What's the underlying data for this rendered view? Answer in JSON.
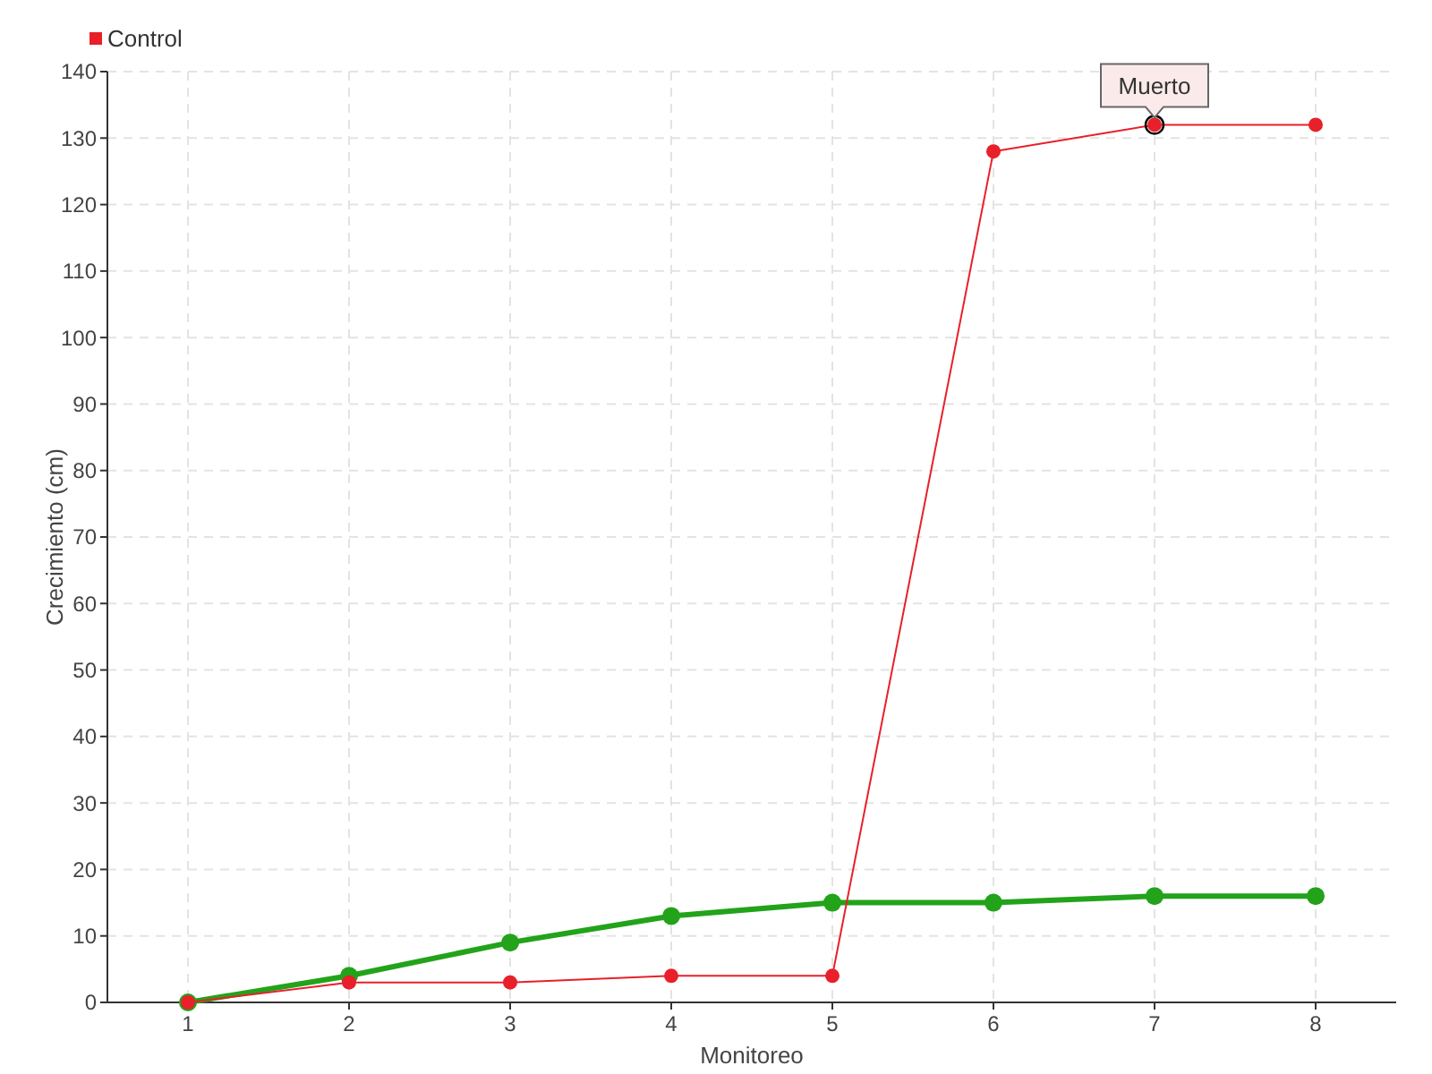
{
  "chart_data": {
    "type": "line",
    "xlabel": "Monitoreo",
    "ylabel": "Crecimiento (cm)",
    "x": [
      1,
      2,
      3,
      4,
      5,
      6,
      7,
      8
    ],
    "series": [
      {
        "color": "#22a31a",
        "values": [
          0,
          4,
          9,
          13,
          15,
          15,
          16,
          16
        ]
      },
      {
        "name": "Control",
        "color": "#e8202a",
        "values": [
          0,
          3,
          3,
          4,
          4,
          128,
          132,
          132
        ]
      }
    ],
    "xlim": [
      0.5,
      8.5
    ],
    "xticks": [
      1,
      2,
      3,
      4,
      5,
      6,
      7,
      8
    ],
    "ylim": [
      0,
      140
    ],
    "yticks": [
      0,
      10,
      20,
      30,
      40,
      50,
      60,
      70,
      80,
      90,
      100,
      110,
      120,
      130,
      140
    ],
    "grid": true,
    "legend": "top left",
    "marker": "circle",
    "annotations": [
      {
        "text": "Muerto",
        "x": 7,
        "y": 132
      }
    ]
  }
}
